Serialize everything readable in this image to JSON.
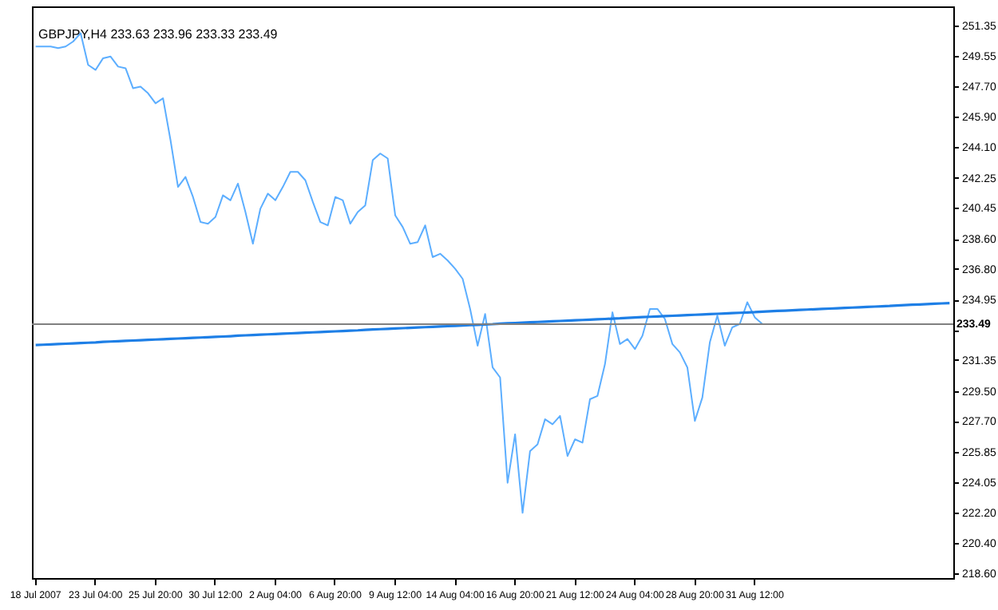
{
  "chart_data": {
    "type": "line",
    "title": "GBPJPY,H4  233.63 233.96 233.33 233.49",
    "categories": [
      "18 Jul 2007",
      null,
      null,
      null,
      null,
      null,
      null,
      null,
      "23 Jul 04:00",
      null,
      null,
      null,
      null,
      null,
      null,
      null,
      "25 Jul 20:00",
      null,
      null,
      null,
      null,
      null,
      null,
      null,
      "30 Jul 12:00",
      null,
      null,
      null,
      null,
      null,
      null,
      null,
      "2 Aug 04:00",
      null,
      null,
      null,
      null,
      null,
      null,
      null,
      "6 Aug 20:00",
      null,
      null,
      null,
      null,
      null,
      null,
      null,
      "9 Aug 12:00",
      null,
      null,
      null,
      null,
      null,
      null,
      null,
      "14 Aug 04:00",
      null,
      null,
      null,
      null,
      null,
      null,
      null,
      "16 Aug 20:00",
      null,
      null,
      null,
      null,
      null,
      null,
      null,
      "21 Aug 12:00",
      null,
      null,
      null,
      null,
      null,
      null,
      null,
      "24 Aug 04:00",
      null,
      null,
      null,
      null,
      null,
      null,
      null,
      "28 Aug 20:00",
      null,
      null,
      null,
      null,
      null,
      null,
      null,
      "31 Aug 12:00",
      null,
      null,
      null,
      null,
      null,
      null,
      null,
      null,
      null,
      null,
      null,
      null,
      null,
      null,
      null,
      null,
      null,
      null,
      null,
      null,
      null,
      null,
      null,
      null,
      null,
      null
    ],
    "ylim": [
      218.3,
      252.5
    ],
    "yticks": [
      {
        "value": 251.35,
        "label": "251.35"
      },
      {
        "value": 249.55,
        "label": "249.55"
      },
      {
        "value": 247.7,
        "label": "247.70"
      },
      {
        "value": 245.9,
        "label": "245.90"
      },
      {
        "value": 244.1,
        "label": "244.10"
      },
      {
        "value": 242.25,
        "label": "242.25"
      },
      {
        "value": 240.45,
        "label": "240.45"
      },
      {
        "value": 238.6,
        "label": "238.60"
      },
      {
        "value": 236.8,
        "label": "236.80"
      },
      {
        "value": 234.95,
        "label": "234.95"
      },
      {
        "value": 233.15,
        "label": null
      },
      {
        "value": 231.35,
        "label": "231.35"
      },
      {
        "value": 229.5,
        "label": "229.50"
      },
      {
        "value": 227.7,
        "label": "227.70"
      },
      {
        "value": 225.85,
        "label": "225.85"
      },
      {
        "value": 224.05,
        "label": "224.05"
      },
      {
        "value": 222.2,
        "label": "222.20"
      },
      {
        "value": 220.4,
        "label": "220.40"
      },
      {
        "value": 218.6,
        "label": "218.60"
      }
    ],
    "series": [
      {
        "type": "line",
        "color": "#5caeff",
        "values": [
          250.1,
          250.1,
          250.1,
          250.0,
          250.1,
          250.4,
          250.9,
          249.0,
          248.7,
          249.4,
          249.5,
          248.9,
          248.8,
          247.6,
          247.7,
          247.3,
          246.7,
          247.0,
          244.5,
          241.7,
          242.3,
          241.1,
          239.6,
          239.5,
          239.9,
          241.2,
          240.9,
          241.9,
          240.2,
          238.3,
          240.4,
          241.3,
          240.9,
          241.7,
          242.6,
          242.6,
          242.1,
          240.8,
          239.6,
          239.4,
          241.1,
          240.9,
          239.5,
          240.2,
          240.6,
          243.3,
          243.7,
          243.4,
          240.0,
          239.3,
          238.3,
          238.4,
          239.4,
          237.5,
          237.7,
          237.3,
          236.8,
          236.2,
          234.4,
          232.2,
          234.1,
          230.9,
          230.3,
          224.0,
          226.9,
          222.2,
          225.9,
          226.3,
          227.8,
          227.5,
          228.0,
          225.6,
          226.6,
          226.4,
          229.0,
          229.2,
          231.1,
          234.2,
          232.3,
          232.6,
          232.0,
          232.8,
          234.4,
          234.4,
          233.8,
          232.3,
          231.8,
          230.9,
          227.7,
          229.1,
          232.4,
          234.0,
          232.2,
          233.3,
          233.5,
          234.8,
          233.9,
          233.5,
          null,
          null,
          null,
          null,
          null,
          null,
          null,
          null,
          null,
          null,
          null,
          null,
          null,
          null,
          null,
          null,
          null,
          null,
          null,
          null,
          null,
          null,
          null,
          null,
          null
        ]
      },
      {
        "type": "line",
        "color": "#1e7fe6",
        "values": [
          232.24,
          232.26,
          232.28,
          232.3,
          232.32,
          232.34,
          232.36,
          232.38,
          232.4,
          232.43,
          232.45,
          232.47,
          232.49,
          232.51,
          232.53,
          232.55,
          232.57,
          232.59,
          232.61,
          232.63,
          232.65,
          232.67,
          232.69,
          232.71,
          232.73,
          232.75,
          232.77,
          232.8,
          232.82,
          232.84,
          232.86,
          232.88,
          232.9,
          232.92,
          232.94,
          232.96,
          232.98,
          233.0,
          233.02,
          233.04,
          233.06,
          233.08,
          233.1,
          233.12,
          233.15,
          233.17,
          233.19,
          233.21,
          233.23,
          233.25,
          233.27,
          233.29,
          233.31,
          233.33,
          233.35,
          233.37,
          233.39,
          233.41,
          233.43,
          233.45,
          233.47,
          233.49,
          233.52,
          233.54,
          233.56,
          233.58,
          233.6,
          233.62,
          233.64,
          233.66,
          233.68,
          233.7,
          233.72,
          233.74,
          233.76,
          233.78,
          233.8,
          233.82,
          233.84,
          233.87,
          233.89,
          233.91,
          233.93,
          233.95,
          233.97,
          233.99,
          234.01,
          234.03,
          234.05,
          234.07,
          234.09,
          234.11,
          234.13,
          234.15,
          234.17,
          234.19,
          234.21,
          234.24,
          234.26,
          234.28,
          234.3,
          234.32,
          234.34,
          234.36,
          234.38,
          234.4,
          234.42,
          234.44,
          234.46,
          234.48,
          234.5,
          234.52,
          234.54,
          234.56,
          234.58,
          234.61,
          234.63,
          234.65,
          234.67,
          234.69,
          234.71,
          234.73,
          234.75
        ]
      }
    ],
    "ref_lines": [
      {
        "axis": "y",
        "value": 233.49,
        "label": "233.49",
        "color": "#808080"
      }
    ]
  }
}
